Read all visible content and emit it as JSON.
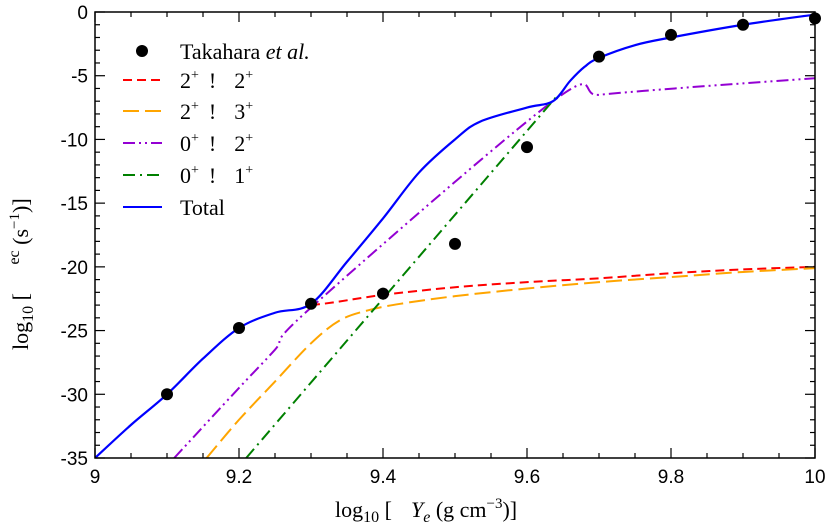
{
  "chart_data": {
    "type": "line",
    "xlabel": "log10 [  Ye (g cm−3)]",
    "ylabel": "log10 [   ec (s−1)]",
    "xlim": [
      9,
      10
    ],
    "ylim": [
      -35,
      0
    ],
    "x_ticks": [
      "9",
      "9.2",
      "9.4",
      "9.6",
      "9.8",
      "10"
    ],
    "y_ticks": [
      "-35",
      "-30",
      "-25",
      "-20",
      "-15",
      "-10",
      "-5",
      "0"
    ],
    "grid": false,
    "legend_position": "top-left",
    "series": [
      {
        "name": "Takahara et al.",
        "style": "markers",
        "color": "#000000",
        "x": [
          9.1,
          9.2,
          9.3,
          9.4,
          9.5,
          9.6,
          9.7,
          9.8,
          9.9,
          10.0
        ],
        "y": [
          -30.0,
          -24.8,
          -22.9,
          -22.1,
          -18.2,
          -10.6,
          -3.5,
          -1.8,
          -1.0,
          -0.5
        ]
      },
      {
        "name": "2+ ! 2+",
        "style": "dashed",
        "color": "#ff0000",
        "x": [
          9.3,
          9.33,
          9.4,
          9.5,
          9.6,
          9.7,
          9.8,
          9.9,
          10.0
        ],
        "y": [
          -23.0,
          -22.8,
          -22.2,
          -21.6,
          -21.2,
          -20.9,
          -20.5,
          -20.2,
          -20.0
        ]
      },
      {
        "name": "2+ ! 3+",
        "style": "long-dashed",
        "color": "#ffa500",
        "x": [
          9.155,
          9.2,
          9.25,
          9.3,
          9.34,
          9.38,
          9.424,
          9.5,
          9.6,
          9.7,
          9.8,
          9.9,
          10.0
        ],
        "y": [
          -35,
          -32.0,
          -29.0,
          -26.0,
          -24.2,
          -23.4,
          -22.9,
          -22.3,
          -21.7,
          -21.2,
          -20.8,
          -20.4,
          -20.1
        ]
      },
      {
        "name": "0+ ! 2+",
        "style": "dash-dot-dot",
        "color": "#9400d3",
        "x": [
          9.11,
          9.2,
          9.25,
          9.3,
          9.636,
          9.7,
          9.805,
          9.9,
          10.0
        ],
        "y": [
          -35,
          -29.5,
          -26.5,
          -23.2,
          -7.0,
          -6.5,
          -6.0,
          -5.6,
          -5.2
        ]
      },
      {
        "name": "0+ ! 1+",
        "style": "dash-dot",
        "color": "#008000",
        "x": [
          9.21,
          9.64
        ],
        "y": [
          -35,
          -6.7
        ]
      },
      {
        "name": "Total",
        "style": "solid",
        "color": "#0000ff",
        "x": [
          9.0,
          9.05,
          9.1,
          9.15,
          9.2,
          9.25,
          9.3,
          9.35,
          9.4,
          9.45,
          9.5,
          9.535,
          9.6,
          9.636,
          9.66,
          9.68,
          9.7,
          9.75,
          9.8,
          9.9,
          10.0
        ],
        "y": [
          -35,
          -32.4,
          -30.0,
          -27.2,
          -24.8,
          -23.6,
          -22.9,
          -19.6,
          -16.2,
          -12.6,
          -10.0,
          -8.6,
          -7.5,
          -7.0,
          -5.4,
          -4.3,
          -3.6,
          -2.6,
          -2.0,
          -1.0,
          -0.2
        ]
      }
    ]
  },
  "legend": {
    "takahara": {
      "prefix": "Takahara ",
      "italic": "et al."
    },
    "r1": {
      "a": "2",
      "as": "+",
      "arrow": "!",
      "b": "2",
      "bs": "+"
    },
    "r2": {
      "a": "2",
      "as": "+",
      "arrow": "!",
      "b": "3",
      "bs": "+"
    },
    "r3": {
      "a": "0",
      "as": "+",
      "arrow": "!",
      "b": "2",
      "bs": "+"
    },
    "r4": {
      "a": "0",
      "as": "+",
      "arrow": "!",
      "b": "1",
      "bs": "+"
    },
    "total": "Total"
  },
  "axes": {
    "x": {
      "pre": "log",
      "sub": "10",
      "bracket": " [  ",
      "var": "Y",
      "varsub": "e",
      "unit": " (g cm",
      "sup": "−3",
      "close": ")]"
    },
    "y": {
      "pre": "log",
      "sub": "10",
      "bracket": " [   ",
      "var": "ec",
      "unit": " (s",
      "sup": "−1",
      "close": ")]"
    }
  }
}
